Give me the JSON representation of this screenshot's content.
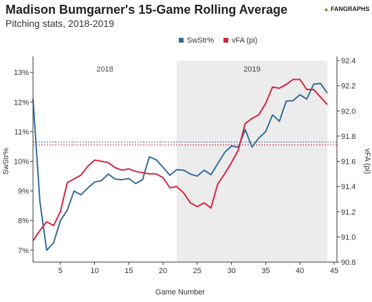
{
  "header": {
    "title": "Madison Bumgarner's 15-Game Rolling Average",
    "subtitle": "Pitching stats, 2018-2019",
    "logo": "FANGRAPHS",
    "logo_icon": "fangraphs-leaf-icon"
  },
  "chart_data": {
    "type": "line",
    "xlabel": "Game Number",
    "ylabel_left": "SwStr%",
    "ylabel_right": "vFA (pi)",
    "xlim": [
      1,
      44
    ],
    "ylim_left": [
      6.6,
      13.4
    ],
    "ylim_right": [
      90.8,
      92.4
    ],
    "x_ticks": [
      "5",
      "10",
      "15",
      "20",
      "25",
      "30",
      "35",
      "40",
      "45"
    ],
    "y_ticks_left": [
      "7%",
      "8%",
      "9%",
      "10%",
      "11%",
      "12%",
      "13%"
    ],
    "y_ticks_right": [
      "90.8",
      "91.0",
      "91.2",
      "91.4",
      "91.6",
      "91.8",
      "92.0",
      "92.2",
      "92.4"
    ],
    "legend_position": "top-right",
    "shaded_region": {
      "label": "2019",
      "x_start": 22,
      "x_end": 44,
      "color": "#ececec"
    },
    "unshaded_label": "2018",
    "series": [
      {
        "name": "SwStr%",
        "axis": "left",
        "color": "#356b96",
        "average": 10.65,
        "x": [
          1,
          2,
          3,
          4,
          5,
          6,
          7,
          8,
          9,
          10,
          11,
          12,
          13,
          14,
          15,
          16,
          17,
          18,
          19,
          20,
          21,
          22,
          23,
          24,
          25,
          26,
          27,
          28,
          29,
          30,
          31,
          32,
          33,
          34,
          35,
          36,
          37,
          38,
          39,
          40,
          41,
          42,
          43,
          44
        ],
        "values": [
          12.1,
          8.65,
          7.0,
          7.25,
          8.0,
          8.35,
          9.0,
          8.87,
          9.1,
          9.3,
          9.35,
          9.57,
          9.4,
          9.38,
          9.42,
          9.25,
          9.38,
          10.15,
          10.05,
          9.8,
          9.53,
          9.72,
          9.7,
          9.57,
          9.5,
          9.7,
          9.55,
          9.92,
          10.3,
          10.52,
          10.47,
          11.07,
          10.48,
          10.79,
          11.0,
          11.57,
          11.35,
          12.03,
          12.05,
          12.25,
          12.1,
          12.6,
          12.63,
          12.3
        ]
      },
      {
        "name": "vFA (pi)",
        "axis": "right",
        "color": "#d3233f",
        "average": 91.73,
        "x": [
          1,
          2,
          3,
          4,
          5,
          6,
          7,
          8,
          9,
          10,
          11,
          12,
          13,
          14,
          15,
          16,
          17,
          18,
          19,
          20,
          21,
          22,
          23,
          24,
          25,
          26,
          27,
          28,
          29,
          30,
          31,
          32,
          33,
          34,
          35,
          36,
          37,
          38,
          39,
          40,
          41,
          42,
          43,
          44
        ],
        "values": [
          90.97,
          91.05,
          91.12,
          91.09,
          91.2,
          91.43,
          91.46,
          91.49,
          91.56,
          91.61,
          91.6,
          91.59,
          91.55,
          91.53,
          91.54,
          91.52,
          91.51,
          91.5,
          91.5,
          91.47,
          91.39,
          91.4,
          91.35,
          91.27,
          91.24,
          91.27,
          91.23,
          91.42,
          91.5,
          91.59,
          91.69,
          91.9,
          91.94,
          91.97,
          92.06,
          92.19,
          92.18,
          92.21,
          92.25,
          92.25,
          92.17,
          92.17,
          92.11,
          92.05
        ]
      }
    ]
  }
}
